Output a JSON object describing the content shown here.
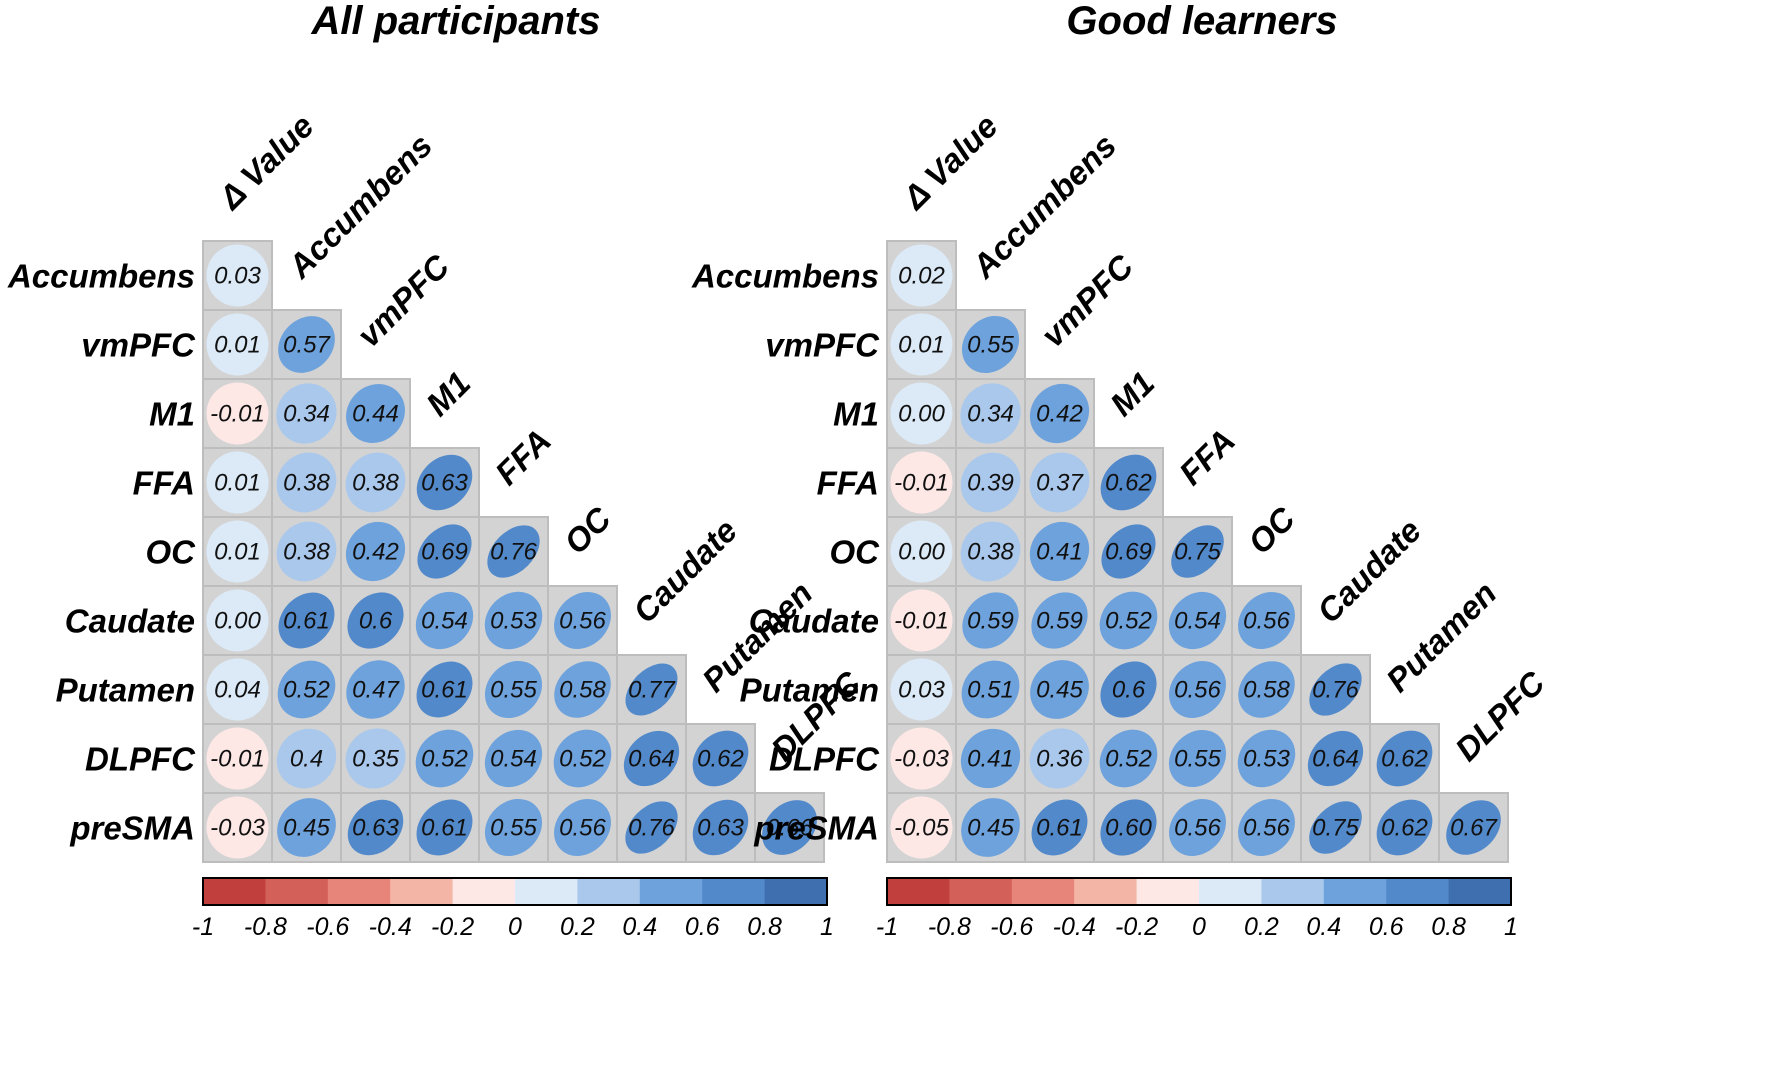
{
  "chart_data": [
    {
      "type": "heatmap",
      "title": "All participants",
      "columns": [
        "Δ Value",
        "Accumbens",
        "vmPFC",
        "M1",
        "FFA",
        "OC",
        "Caudate",
        "Putamen",
        "DLPFC"
      ],
      "rows": [
        "Accumbens",
        "vmPFC",
        "M1",
        "FFA",
        "OC",
        "Caudate",
        "Putamen",
        "DLPFC",
        "preSMA"
      ],
      "labels": [
        [
          "0.03"
        ],
        [
          "0.01",
          "0.57"
        ],
        [
          "-0.01",
          "0.34",
          "0.44"
        ],
        [
          "0.01",
          "0.38",
          "0.38",
          "0.63"
        ],
        [
          "0.01",
          "0.38",
          "0.42",
          "0.69",
          "0.76"
        ],
        [
          "0.00",
          "0.61",
          "0.6",
          "0.54",
          "0.53",
          "0.56"
        ],
        [
          "0.04",
          "0.52",
          "0.47",
          "0.61",
          "0.55",
          "0.58",
          "0.77"
        ],
        [
          "-0.01",
          "0.4",
          "0.35",
          "0.52",
          "0.54",
          "0.52",
          "0.64",
          "0.62"
        ],
        [
          "-0.03",
          "0.45",
          "0.63",
          "0.61",
          "0.55",
          "0.56",
          "0.76",
          "0.63",
          "0.66"
        ]
      ],
      "colorbar": {
        "range": [
          -1,
          1
        ],
        "ticks": [
          "-1",
          "-0.8",
          "-0.6",
          "-0.4",
          "-0.2",
          "0",
          "0.2",
          "0.4",
          "0.6",
          "0.8",
          "1"
        ],
        "colors": [
          "#c13f3d",
          "#d4605a",
          "#e8857a",
          "#f3b6a6",
          "#fde8e6",
          "#dceaf7",
          "#a9c8ec",
          "#6ea2dc",
          "#5289ca",
          "#3f6fae"
        ]
      }
    },
    {
      "type": "heatmap",
      "title": "Good learners",
      "columns": [
        "Δ Value",
        "Accumbens",
        "vmPFC",
        "M1",
        "FFA",
        "OC",
        "Caudate",
        "Putamen",
        "DLPFC"
      ],
      "rows": [
        "Accumbens",
        "vmPFC",
        "M1",
        "FFA",
        "OC",
        "Caudate",
        "Putamen",
        "DLPFC",
        "preSMA"
      ],
      "labels": [
        [
          "0.02"
        ],
        [
          "0.01",
          "0.55"
        ],
        [
          "0.00",
          "0.34",
          "0.42"
        ],
        [
          "-0.01",
          "0.39",
          "0.37",
          "0.62"
        ],
        [
          "0.00",
          "0.38",
          "0.41",
          "0.69",
          "0.75"
        ],
        [
          "-0.01",
          "0.59",
          "0.59",
          "0.52",
          "0.54",
          "0.56"
        ],
        [
          "0.03",
          "0.51",
          "0.45",
          "0.6",
          "0.56",
          "0.58",
          "0.76"
        ],
        [
          "-0.03",
          "0.41",
          "0.36",
          "0.52",
          "0.55",
          "0.53",
          "0.64",
          "0.62"
        ],
        [
          "-0.05",
          "0.45",
          "0.61",
          "0.60",
          "0.56",
          "0.56",
          "0.75",
          "0.62",
          "0.67"
        ]
      ],
      "colorbar": {
        "range": [
          -1,
          1
        ],
        "ticks": [
          "-1",
          "-0.8",
          "-0.6",
          "-0.4",
          "-0.2",
          "0",
          "0.2",
          "0.4",
          "0.6",
          "0.8",
          "1"
        ],
        "colors": [
          "#c13f3d",
          "#d4605a",
          "#e8857a",
          "#f3b6a6",
          "#fde8e6",
          "#dceaf7",
          "#a9c8ec",
          "#6ea2dc",
          "#5289ca",
          "#3f6fae"
        ]
      }
    }
  ]
}
